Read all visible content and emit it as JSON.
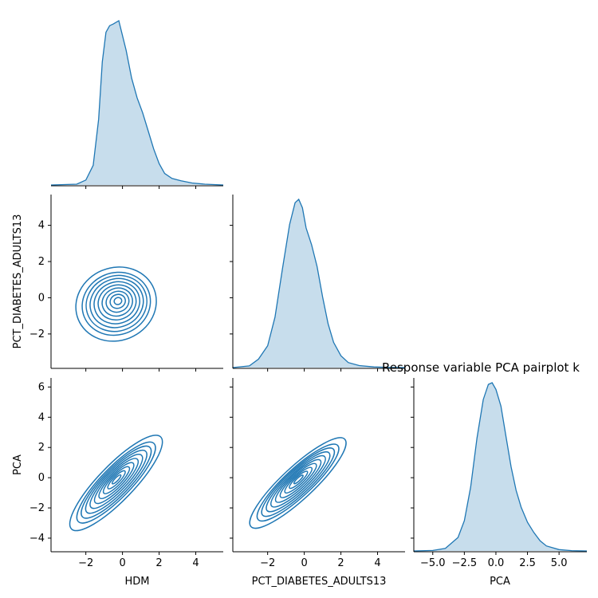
{
  "title": "Response variable PCA pairplot k",
  "colors": {
    "line": "#1f77b4",
    "fill": "#1f77b4"
  },
  "chart_data": {
    "type": "pairplot-kde",
    "variables": [
      "HDM",
      "PCT_DIABETES_ADULTS13",
      "PCA"
    ],
    "x_tick_labels": {
      "HDM": [
        "−2",
        "0",
        "2",
        "4"
      ],
      "PCT_DIABETES_ADULTS13": [
        "−2",
        "0",
        "2",
        "4"
      ],
      "PCA": [
        "−5.0",
        "−2.5",
        "0.0",
        "2.5",
        "5.0"
      ]
    },
    "y_tick_labels": {
      "PCT_DIABETES_ADULTS13": [
        "−2",
        "0",
        "2",
        "4"
      ],
      "PCA": [
        "−4",
        "−2",
        "0",
        "2",
        "4",
        "6"
      ]
    },
    "x_ranges": {
      "HDM": [
        -3.9,
        5.5
      ],
      "PCT_DIABETES_ADULTS13": [
        -3.9,
        5.5
      ],
      "PCA": [
        -6.5,
        7.2
      ]
    },
    "y_ranges": {
      "PCT_DIABETES_ADULTS13": [
        -3.9,
        5.7
      ],
      "PCA": [
        -4.9,
        6.6
      ]
    },
    "diagonal": [
      {
        "variable": "HDM",
        "x": [
          -3.9,
          -2.5,
          -2.0,
          -1.6,
          -1.3,
          -1.1,
          -0.9,
          -0.7,
          -0.5,
          -0.2,
          0.2,
          0.5,
          0.8,
          1.1,
          1.4,
          1.7,
          2.0,
          2.3,
          2.7,
          3.2,
          3.8,
          4.5,
          5.5
        ],
        "density": [
          0,
          0.005,
          0.03,
          0.12,
          0.4,
          0.75,
          0.93,
          0.97,
          0.98,
          1.0,
          0.82,
          0.65,
          0.53,
          0.44,
          0.33,
          0.22,
          0.13,
          0.07,
          0.04,
          0.025,
          0.012,
          0.005,
          0
        ]
      },
      {
        "variable": "PCT_DIABETES_ADULTS13",
        "x": [
          -3.9,
          -3.0,
          -2.5,
          -2.0,
          -1.6,
          -1.2,
          -0.8,
          -0.5,
          -0.3,
          -0.1,
          0.1,
          0.4,
          0.7,
          1.0,
          1.3,
          1.6,
          2.0,
          2.4,
          3.0,
          3.8,
          4.6,
          5.5
        ],
        "density": [
          0,
          0.01,
          0.05,
          0.13,
          0.3,
          0.58,
          0.85,
          0.98,
          1.0,
          0.95,
          0.83,
          0.73,
          0.6,
          0.42,
          0.26,
          0.15,
          0.07,
          0.03,
          0.012,
          0.004,
          0.001,
          0
        ]
      },
      {
        "variable": "PCA",
        "x": [
          -6.5,
          -5.0,
          -4.0,
          -3.0,
          -2.5,
          -2.0,
          -1.5,
          -1.0,
          -0.6,
          -0.3,
          0.0,
          0.4,
          0.8,
          1.2,
          1.6,
          2.0,
          2.5,
          3.0,
          3.5,
          4.0,
          5.0,
          6.0,
          7.2
        ],
        "density": [
          0,
          0.003,
          0.015,
          0.08,
          0.18,
          0.38,
          0.67,
          0.9,
          0.99,
          1.0,
          0.96,
          0.86,
          0.68,
          0.5,
          0.36,
          0.26,
          0.17,
          0.11,
          0.06,
          0.03,
          0.008,
          0.002,
          0
        ]
      }
    ],
    "bivariate": [
      {
        "x_var": "HDM",
        "y_var": "PCT_DIABETES_ADULTS13",
        "center": [
          -0.35,
          -0.35
        ],
        "angle_deg": 22,
        "outer_radii": [
          2.1,
          1.9
        ],
        "levels": 10
      },
      {
        "x_var": "HDM",
        "y_var": "PCA",
        "center": [
          -0.35,
          -0.35
        ],
        "angle_deg": 46,
        "outer_radii": [
          3.3,
          1.1
        ],
        "levels": 10
      },
      {
        "x_var": "PCT_DIABETES_ADULTS13",
        "y_var": "PCA",
        "center": [
          -0.35,
          -0.35
        ],
        "angle_deg": 43,
        "outer_radii": [
          3.3,
          1.0
        ],
        "levels": 10
      }
    ]
  }
}
